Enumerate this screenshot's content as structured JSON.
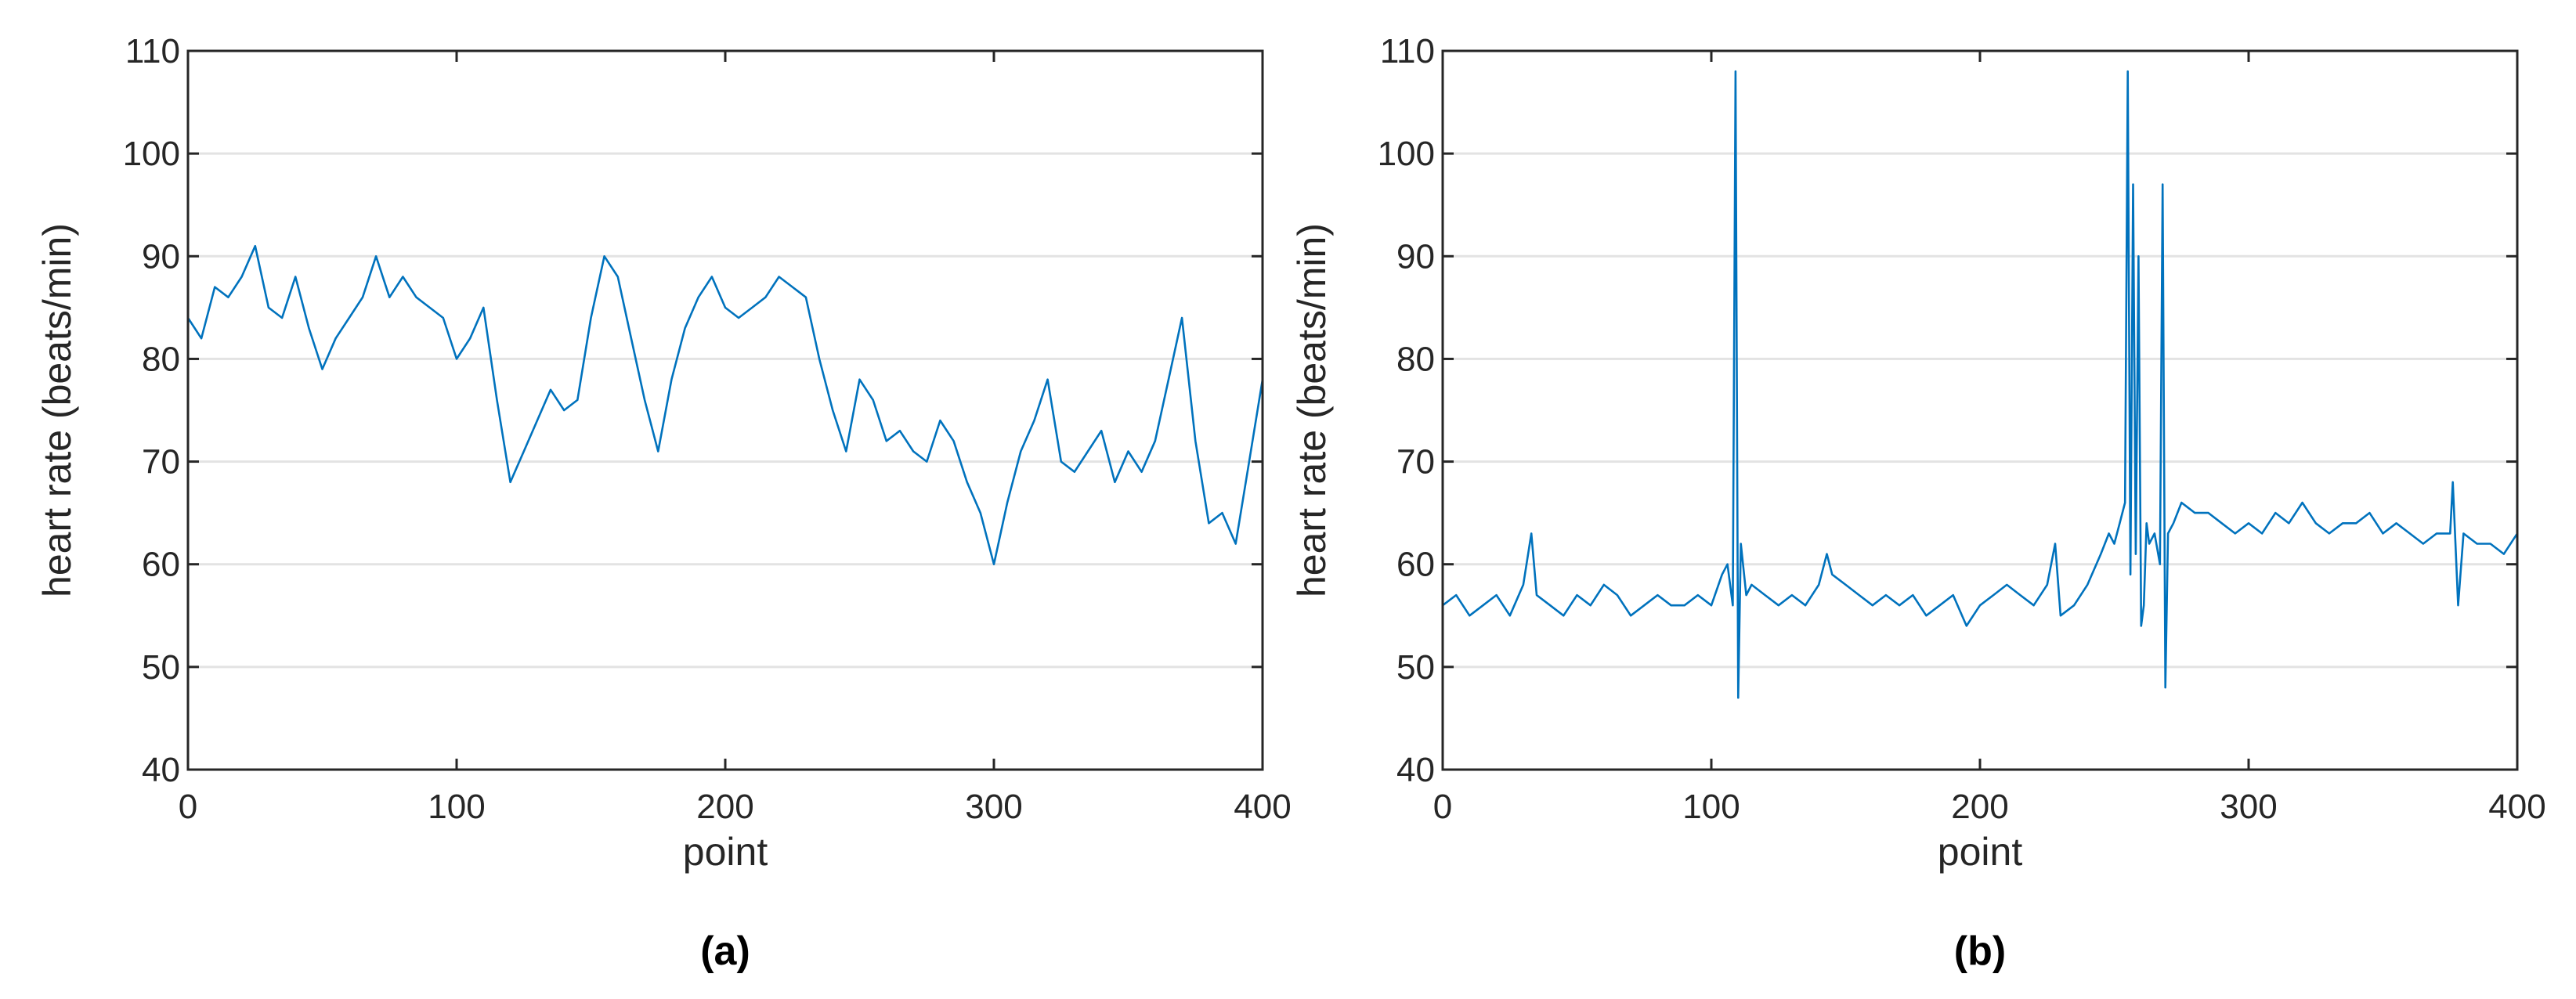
{
  "chart_data": [
    {
      "type": "line",
      "panel_label": "(a)",
      "title": "",
      "xlabel": "point",
      "ylabel": "heart rate (beats/min)",
      "xlim": [
        0,
        400
      ],
      "ylim": [
        40,
        110
      ],
      "xticks": [
        0,
        100,
        200,
        300,
        400
      ],
      "yticks": [
        40,
        50,
        60,
        70,
        80,
        90,
        100,
        110
      ],
      "grid": "horizontal",
      "color": "#0072BD",
      "series": [
        {
          "x": [
            0,
            5,
            10,
            15,
            20,
            25,
            30,
            35,
            40,
            45,
            50,
            55,
            60,
            65,
            70,
            75,
            80,
            85,
            90,
            95,
            100,
            105,
            110,
            115,
            120,
            125,
            130,
            135,
            140,
            145,
            150,
            155,
            160,
            165,
            170,
            175,
            180,
            185,
            190,
            195,
            200,
            205,
            210,
            215,
            220,
            225,
            230,
            235,
            240,
            245,
            250,
            255,
            260,
            265,
            270,
            275,
            280,
            285,
            290,
            295,
            300,
            305,
            310,
            315,
            320,
            325,
            330,
            335,
            340,
            345,
            350,
            355,
            360,
            365,
            370,
            375,
            380,
            385,
            390,
            395,
            400
          ],
          "y": [
            84,
            82,
            87,
            86,
            88,
            91,
            85,
            84,
            88,
            83,
            79,
            82,
            84,
            86,
            90,
            86,
            88,
            86,
            85,
            84,
            80,
            82,
            85,
            76,
            68,
            71,
            74,
            77,
            75,
            76,
            84,
            90,
            88,
            82,
            76,
            71,
            78,
            83,
            86,
            88,
            85,
            84,
            85,
            86,
            88,
            87,
            86,
            80,
            75,
            71,
            78,
            76,
            72,
            73,
            71,
            70,
            74,
            72,
            68,
            65,
            60,
            66,
            71,
            74,
            78,
            70,
            69,
            71,
            73,
            68,
            71,
            69,
            72,
            78,
            84,
            72,
            64,
            65,
            62,
            70,
            78
          ]
        }
      ]
    },
    {
      "type": "line",
      "panel_label": "(b)",
      "title": "",
      "xlabel": "point",
      "ylabel": "heart rate (beats/min)",
      "xlim": [
        0,
        400
      ],
      "ylim": [
        40,
        110
      ],
      "xticks": [
        0,
        100,
        200,
        300,
        400
      ],
      "yticks": [
        40,
        50,
        60,
        70,
        80,
        90,
        100,
        110
      ],
      "grid": "horizontal",
      "color": "#0072BD",
      "series": [
        {
          "x": [
            0,
            5,
            10,
            15,
            20,
            25,
            30,
            33,
            35,
            40,
            45,
            50,
            55,
            60,
            65,
            70,
            75,
            80,
            85,
            90,
            95,
            100,
            104,
            106,
            108,
            109,
            110,
            111,
            113,
            115,
            120,
            125,
            130,
            135,
            140,
            143,
            145,
            150,
            155,
            160,
            165,
            170,
            175,
            180,
            185,
            190,
            195,
            200,
            205,
            210,
            215,
            220,
            225,
            228,
            230,
            235,
            240,
            245,
            248,
            250,
            252,
            254,
            255,
            256,
            257,
            258,
            259,
            260,
            261,
            262,
            263,
            265,
            267,
            268,
            269,
            270,
            272,
            275,
            280,
            285,
            290,
            295,
            300,
            305,
            310,
            315,
            320,
            325,
            330,
            335,
            340,
            345,
            350,
            355,
            360,
            365,
            370,
            375,
            376,
            378,
            380,
            385,
            390,
            395,
            400
          ],
          "y": [
            56,
            57,
            55,
            56,
            57,
            55,
            58,
            63,
            57,
            56,
            55,
            57,
            56,
            58,
            57,
            55,
            56,
            57,
            56,
            56,
            57,
            56,
            59,
            60,
            56,
            108,
            47,
            62,
            57,
            58,
            57,
            56,
            57,
            56,
            58,
            61,
            59,
            58,
            57,
            56,
            57,
            56,
            57,
            55,
            56,
            57,
            54,
            56,
            57,
            58,
            57,
            56,
            58,
            62,
            55,
            56,
            58,
            61,
            63,
            62,
            64,
            66,
            108,
            59,
            97,
            61,
            90,
            54,
            56,
            64,
            62,
            63,
            60,
            97,
            48,
            63,
            64,
            66,
            65,
            65,
            64,
            63,
            64,
            63,
            65,
            64,
            66,
            64,
            63,
            64,
            64,
            65,
            63,
            64,
            63,
            62,
            63,
            63,
            68,
            56,
            63,
            62,
            62,
            61,
            63
          ]
        }
      ]
    }
  ]
}
